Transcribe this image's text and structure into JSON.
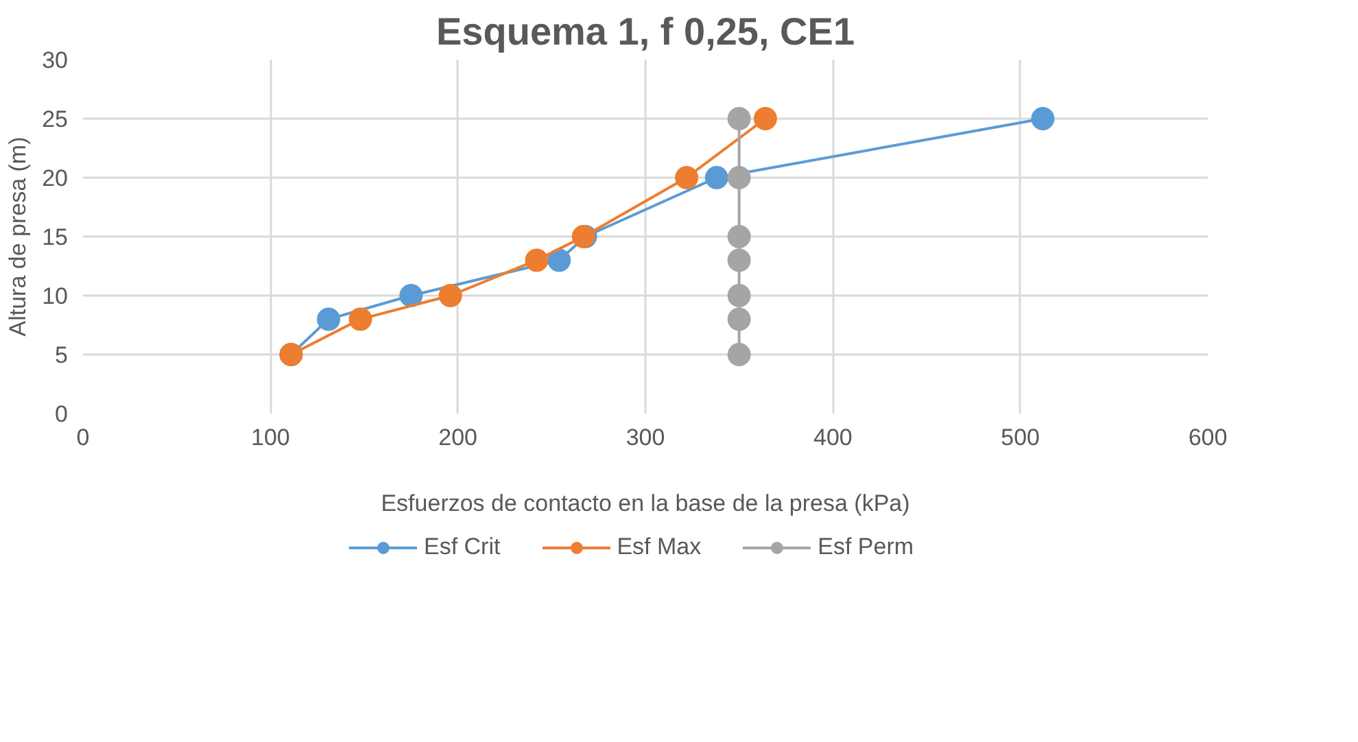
{
  "chart_data": {
    "type": "line",
    "title": "Esquema 1, f 0,25, CE1",
    "xlabel": "Esfuerzos de contacto en la base de la presa (kPa)",
    "ylabel": "Altura de presa (m)",
    "series": [
      {
        "name": "Esf Crit",
        "color": "#5b9bd5",
        "x": [
          111,
          131,
          175,
          254,
          268,
          338,
          512
        ],
        "values": [
          5,
          8,
          10,
          13,
          15,
          20,
          25
        ]
      },
      {
        "name": "Esf Max",
        "color": "#ed7d31",
        "x": [
          111,
          148,
          196,
          242,
          267,
          322,
          364
        ],
        "values": [
          5,
          8,
          10,
          13,
          15,
          20,
          25
        ]
      },
      {
        "name": "Esf Perm",
        "color": "#a5a5a5",
        "x": [
          350,
          350,
          350,
          350,
          350,
          350,
          350
        ],
        "values": [
          5,
          8,
          10,
          13,
          15,
          20,
          25
        ]
      }
    ],
    "xlim": [
      0,
      600
    ],
    "xticks": [
      0,
      100,
      200,
      300,
      400,
      500,
      600
    ],
    "ylim": [
      0,
      30
    ],
    "yticks": [
      0,
      5,
      10,
      15,
      20,
      25,
      30
    ],
    "grid": true,
    "legend": "bottom",
    "marker": "circle",
    "line_style": "solid"
  }
}
